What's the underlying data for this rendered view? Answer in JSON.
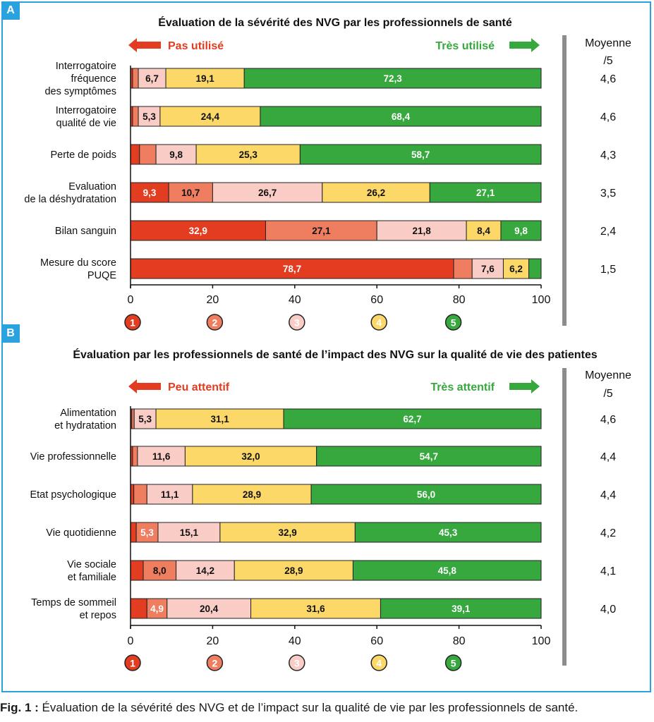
{
  "caption": {
    "label": "Fig. 1 :",
    "text": " Évaluation de la sévérité des NVG et de l’impact sur la qualité de vie par les professionnels de santé."
  },
  "colors": {
    "frame": "#2aa2df",
    "level_1": "#e23c21",
    "level_2": "#ef7d5f",
    "level_3": "#f9cdc6",
    "level_4": "#fbd868",
    "level_5": "#36a83e",
    "axis_bar": "#8c8c8c"
  },
  "chart_data": [
    {
      "panel": "A",
      "type": "bar",
      "orientation": "horizontal",
      "stacked": true,
      "title": "Évaluation de la sévérité des NVG par les professionnels de santé",
      "left_arrow_label": "Pas utilisé",
      "right_arrow_label": "Très utilisé",
      "mean_header": [
        "Moyenne",
        "/5"
      ],
      "xlim": [
        0,
        100
      ],
      "xticks": [
        "0",
        "20",
        "40",
        "60",
        "80",
        "100"
      ],
      "levels": [
        "1",
        "2",
        "3",
        "4",
        "5"
      ],
      "categories": [
        [
          "Interrogatoire",
          "fréquence",
          "des symptômes"
        ],
        [
          "Interrogatoire",
          "qualité de vie"
        ],
        [
          "Perte de poids"
        ],
        [
          "Evaluation",
          "de la déshydratation"
        ],
        [
          "Bilan sanguin"
        ],
        [
          "Mesure du score",
          "PUQE"
        ]
      ],
      "series_values": [
        [
          0.5,
          1.4,
          6.7,
          19.1,
          72.3
        ],
        [
          0.5,
          1.4,
          5.3,
          24.4,
          68.4
        ],
        [
          2.2,
          4.0,
          9.8,
          25.3,
          58.7
        ],
        [
          9.3,
          10.7,
          26.7,
          26.2,
          27.1
        ],
        [
          32.9,
          27.1,
          21.8,
          8.4,
          9.8
        ],
        [
          78.7,
          4.5,
          7.6,
          6.2,
          3.0
        ]
      ],
      "data_labels": [
        [
          "",
          "",
          "6,7",
          "19,1",
          "72,3"
        ],
        [
          "",
          "",
          "5,3",
          "24,4",
          "68,4"
        ],
        [
          "",
          "",
          "9,8",
          "25,3",
          "58,7"
        ],
        [
          "9,3",
          "10,7",
          "26,7",
          "26,2",
          "27,1"
        ],
        [
          "32,9",
          "27,1",
          "21,8",
          "8,4",
          "9,8"
        ],
        [
          "78,7",
          "",
          "7,6",
          "6,2",
          ""
        ]
      ],
      "means": [
        "4,6",
        "4,6",
        "4,3",
        "3,5",
        "2,4",
        "1,5"
      ]
    },
    {
      "panel": "B",
      "type": "bar",
      "orientation": "horizontal",
      "stacked": true,
      "title": "Évaluation par les professionnels de santé de l’impact des NVG sur la qualité de vie des patientes",
      "left_arrow_label": "Peu attentif",
      "right_arrow_label": "Très attentif",
      "mean_header": [
        "Moyenne",
        "/5"
      ],
      "xlim": [
        0,
        100
      ],
      "xticks": [
        "0",
        "20",
        "40",
        "60",
        "80",
        "100"
      ],
      "levels": [
        "1",
        "2",
        "3",
        "4",
        "5"
      ],
      "categories": [
        [
          "Alimentation",
          "et hydratation"
        ],
        [
          "Vie professionnelle"
        ],
        [
          "Etat psychologique"
        ],
        [
          "Vie quotidienne"
        ],
        [
          "Vie sociale",
          "et familiale"
        ],
        [
          "Temps de sommeil",
          "et repos"
        ]
      ],
      "series_values": [
        [
          0.3,
          0.6,
          5.3,
          31.1,
          62.7
        ],
        [
          0.5,
          1.2,
          11.6,
          32.0,
          54.7
        ],
        [
          0.8,
          3.2,
          11.1,
          28.9,
          56.0
        ],
        [
          1.4,
          5.3,
          15.1,
          32.9,
          45.3
        ],
        [
          3.1,
          8.0,
          14.2,
          28.9,
          45.8
        ],
        [
          4.0,
          4.9,
          20.4,
          31.6,
          39.1
        ]
      ],
      "data_labels": [
        [
          "",
          "",
          "5,3",
          "31,1",
          "62,7"
        ],
        [
          "",
          "",
          "11,6",
          "32,0",
          "54,7"
        ],
        [
          "",
          "",
          "11,1",
          "28,9",
          "56,0"
        ],
        [
          "",
          "5,3",
          "15,1",
          "32,9",
          "45,3"
        ],
        [
          "",
          "8,0",
          "14,2",
          "28,9",
          "45,8"
        ],
        [
          "",
          "4,9",
          "20,4",
          "31,6",
          "39,1"
        ]
      ],
      "means": [
        "4,6",
        "4,4",
        "4,4",
        "4,2",
        "4,1",
        "4,0"
      ]
    }
  ]
}
